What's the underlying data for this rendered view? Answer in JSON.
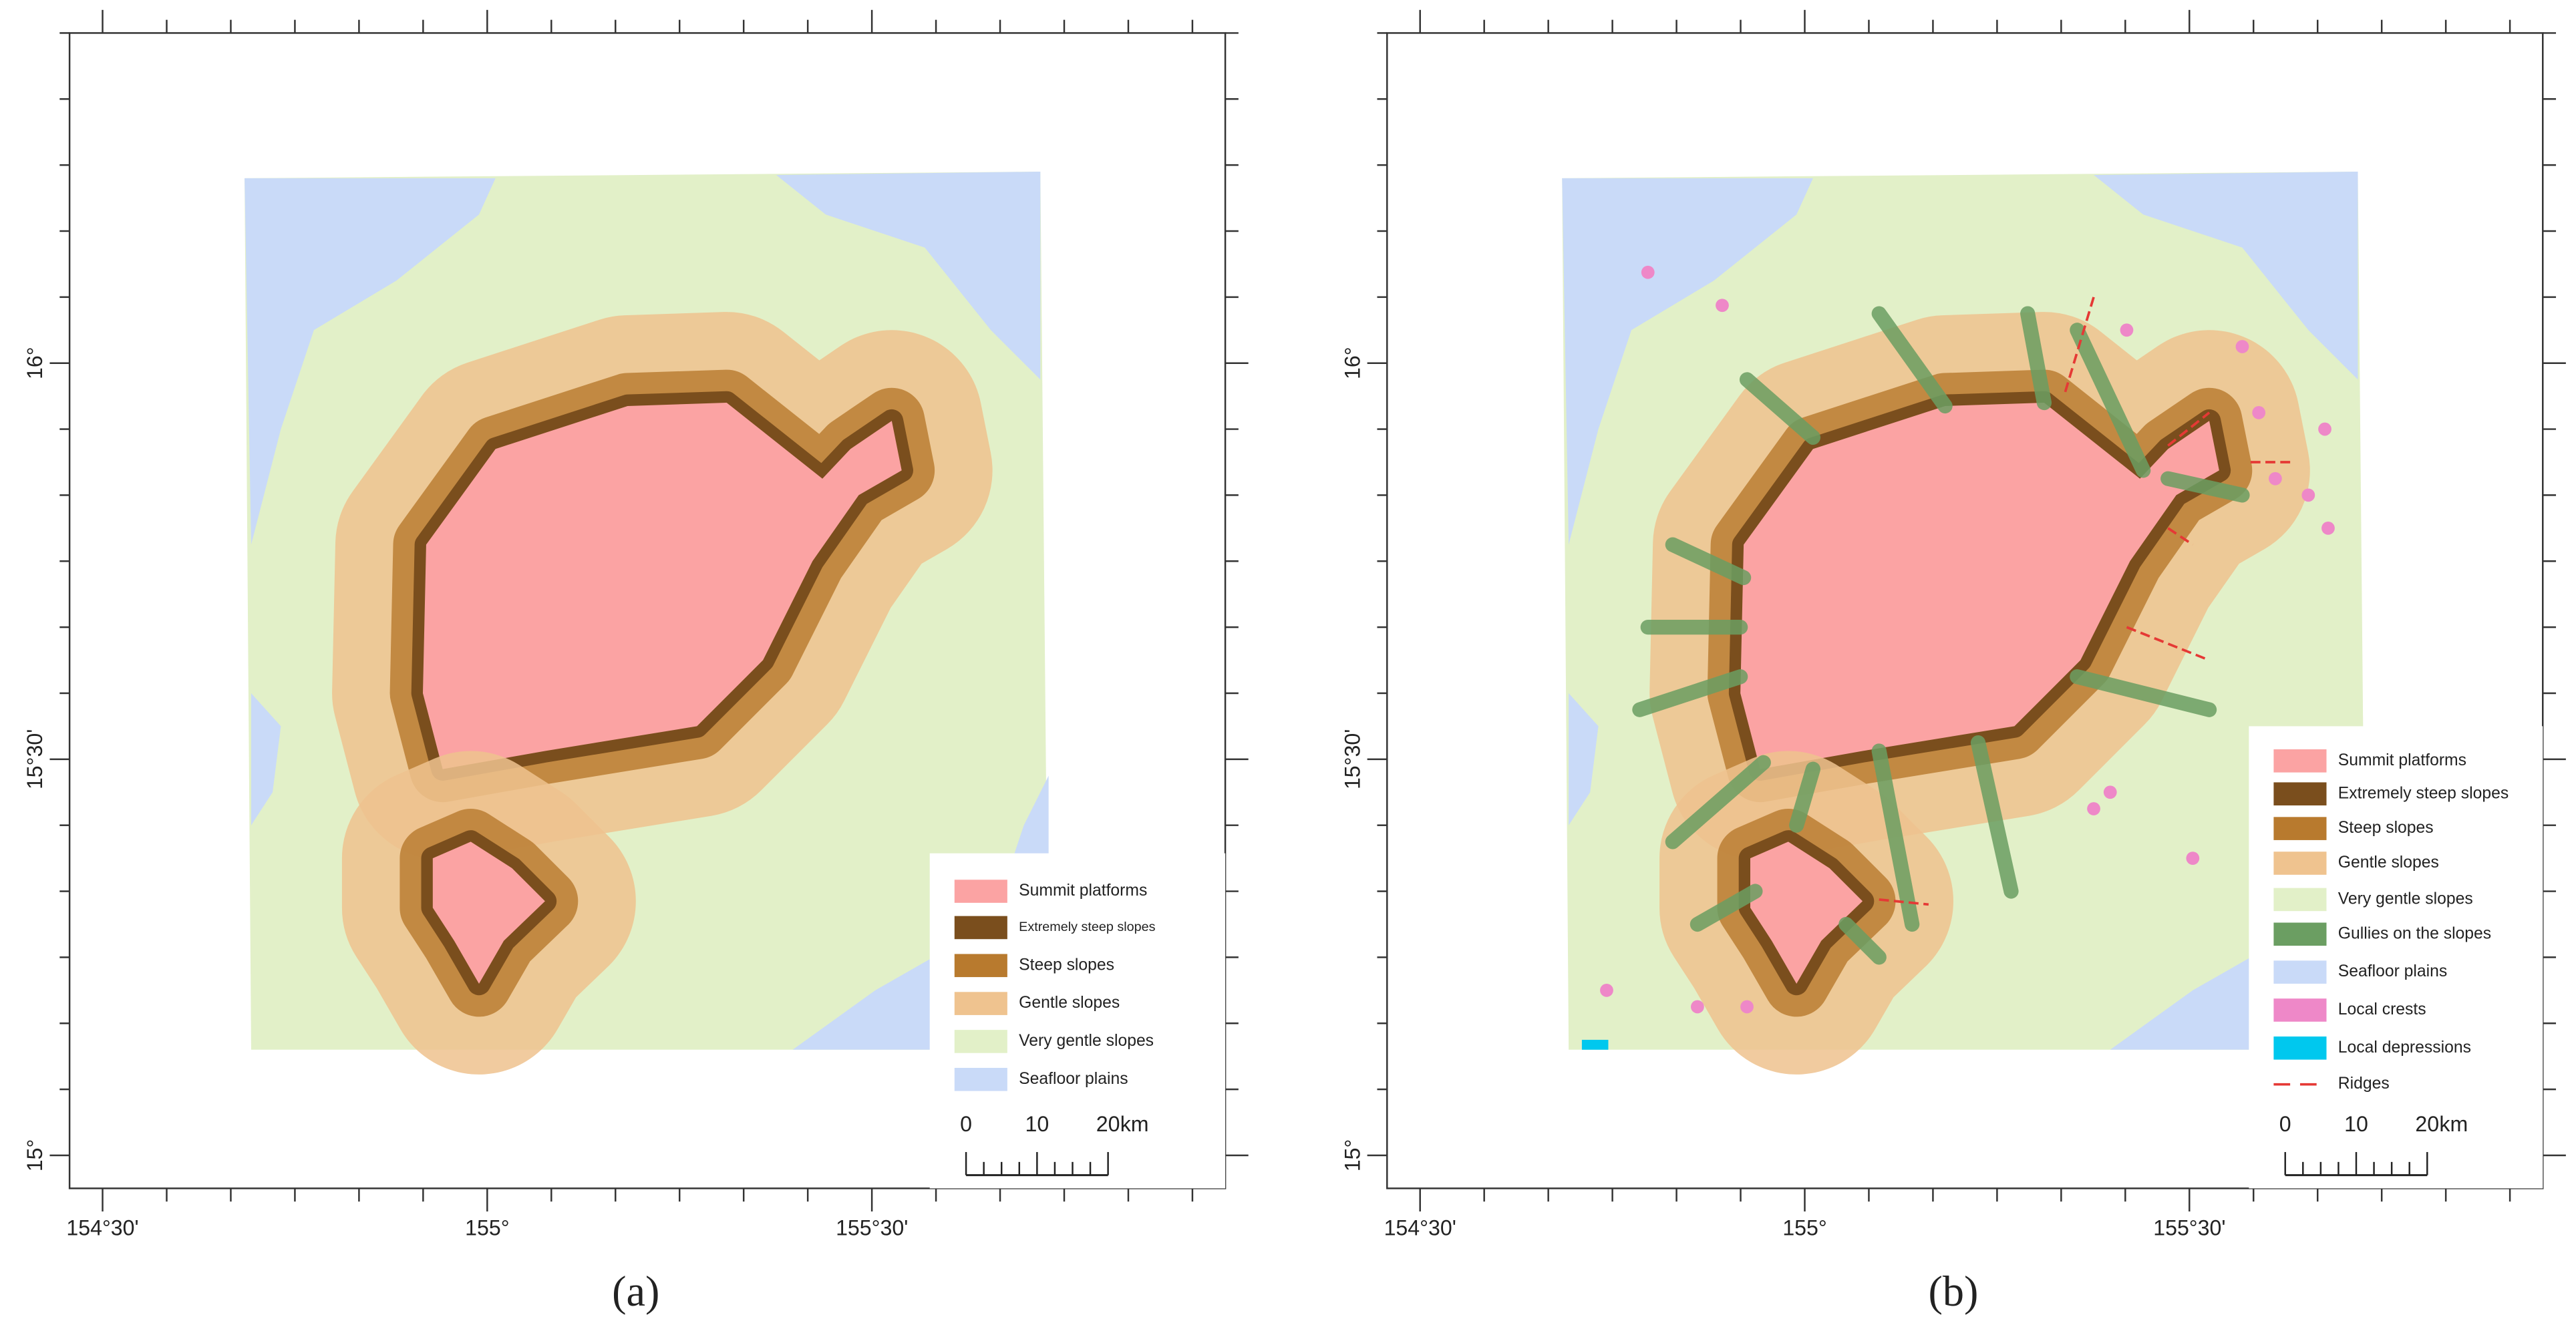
{
  "panels": [
    {
      "label": "(a)",
      "x_labels": [
        "154°30'",
        "155°",
        "155°30'"
      ],
      "y_labels": [
        "16°",
        "15°30'",
        "15°"
      ],
      "legend": [
        {
          "name": "Summit platforms",
          "color": "#fba3a3"
        },
        {
          "name": "Extremely steep slopes",
          "color": "#7a4e1d"
        },
        {
          "name": "Steep slopes",
          "color": "#b87a2e"
        },
        {
          "name": "Gentle slopes",
          "color": "#efc38f"
        },
        {
          "name": "Very gentle slopes",
          "color": "#e2f0c8"
        },
        {
          "name": "Seafloor plains",
          "color": "#c9daf8"
        }
      ],
      "scale_bar": {
        "labels": [
          "0",
          "10",
          "20"
        ],
        "unit": "km"
      }
    },
    {
      "label": "(b)",
      "x_labels": [
        "154°30'",
        "155°",
        "155°30'"
      ],
      "y_labels": [
        "16°",
        "15°30'",
        "15°"
      ],
      "legend": [
        {
          "name": "Summit platforms",
          "color": "#fba3a3"
        },
        {
          "name": "Extremely steep slopes",
          "color": "#7a4e1d"
        },
        {
          "name": "Steep slopes",
          "color": "#b87a2e"
        },
        {
          "name": "Gentle slopes",
          "color": "#efc38f"
        },
        {
          "name": "Very gentle slopes",
          "color": "#e2f0c8"
        },
        {
          "name": "Gullies on the slopes",
          "color": "#6b9e62"
        },
        {
          "name": "Seafloor plains",
          "color": "#c9daf8"
        },
        {
          "name": "Local crests",
          "color": "#ee88c8"
        },
        {
          "name": "Local depressions",
          "color": "#00c8ee"
        },
        {
          "name": "Ridges",
          "color": "#e53935",
          "symbol": "dashed-line"
        }
      ],
      "scale_bar": {
        "labels": [
          "0",
          "10",
          "20"
        ],
        "unit": "km"
      }
    }
  ]
}
